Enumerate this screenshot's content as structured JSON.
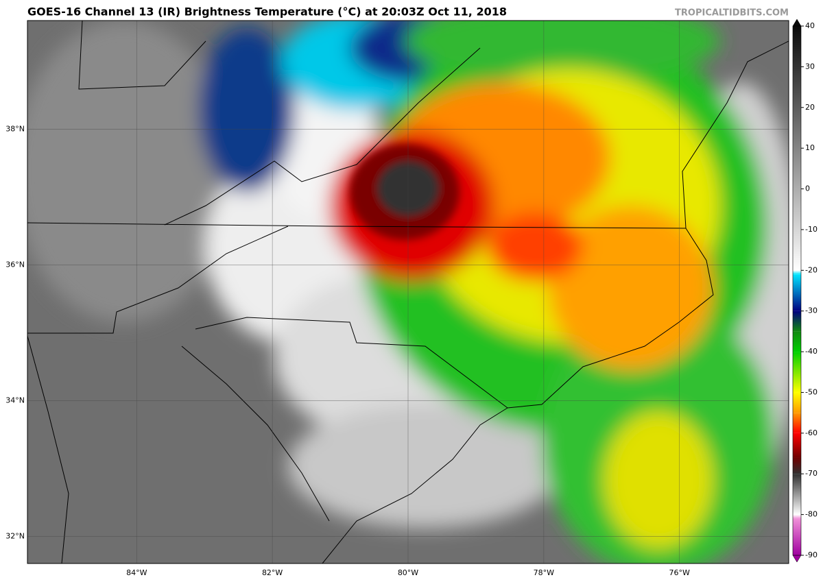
{
  "map": {
    "title": "GOES-16 Channel 13 (IR) Brightness Temperature (°C) at 20:03Z Oct 11, 2018",
    "credit": "TROPICALTIDBITS.COM",
    "lon_range": [
      -85.61,
      -74.39
    ],
    "lat_range": [
      31.6,
      39.6
    ],
    "latitude_ticks": [
      {
        "value": 38,
        "label": "38°N"
      },
      {
        "value": 36,
        "label": "36°N"
      },
      {
        "value": 34,
        "label": "34°N"
      },
      {
        "value": 32,
        "label": "32°N"
      }
    ],
    "longitude_ticks": [
      {
        "value": -84,
        "label": "84°W"
      },
      {
        "value": -82,
        "label": "82°W"
      },
      {
        "value": -80,
        "label": "80°W"
      },
      {
        "value": -78,
        "label": "78°W"
      },
      {
        "value": -76,
        "label": "76°W"
      }
    ],
    "colorbar": {
      "lim": [
        -90,
        40
      ],
      "ticks": [
        -90,
        -80,
        -70,
        -60,
        -50,
        -40,
        -30,
        -20,
        -10,
        0,
        10,
        20,
        30,
        40
      ],
      "stops": [
        {
          "value": -90,
          "color": "#a000a0"
        },
        {
          "value": -81,
          "color": "#f090d8"
        },
        {
          "value": -80,
          "color": "#ffffff"
        },
        {
          "value": -70,
          "color": "#303030"
        },
        {
          "value": -66,
          "color": "#700000"
        },
        {
          "value": -60,
          "color": "#ff0000"
        },
        {
          "value": -55,
          "color": "#ff9a00"
        },
        {
          "value": -50,
          "color": "#ffff00"
        },
        {
          "value": -40,
          "color": "#00d000"
        },
        {
          "value": -35,
          "color": "#118811"
        },
        {
          "value": -30,
          "color": "#000080"
        },
        {
          "value": -21,
          "color": "#00e5ff"
        },
        {
          "value": -20,
          "color": "#ffffff"
        },
        {
          "value": 40,
          "color": "#0a0a0a"
        }
      ]
    }
  }
}
